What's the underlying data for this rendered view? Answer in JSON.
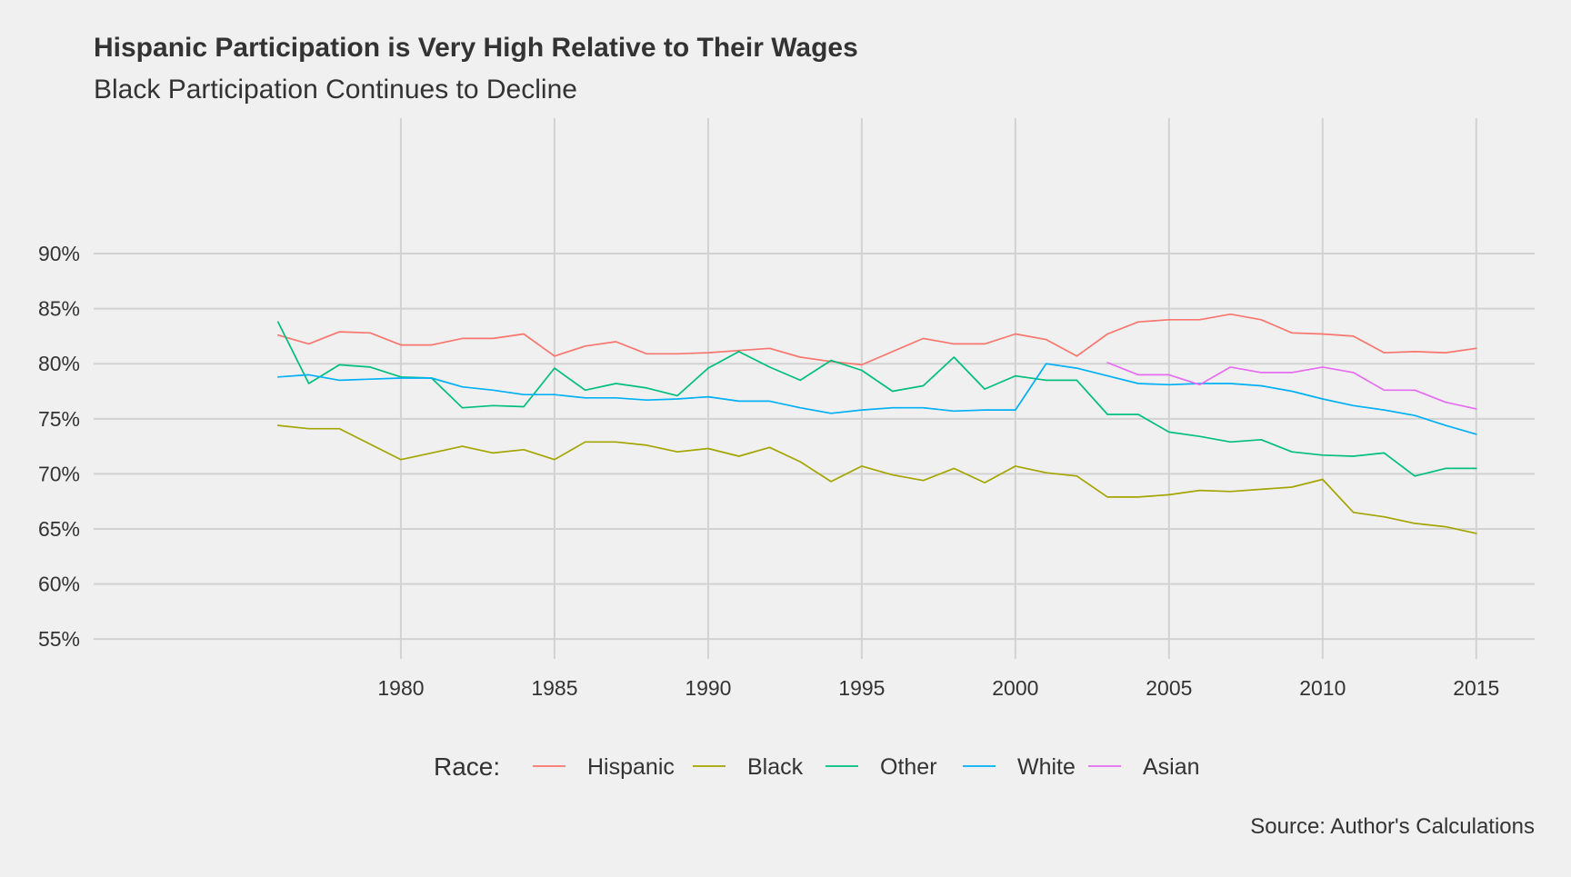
{
  "chart_data": {
    "type": "line",
    "title": "Hispanic Participation is Very High Relative to Their Wages",
    "subtitle": "Black Participation Continues to Decline",
    "caption": "Source: Author's Calculations",
    "xlabel": "",
    "ylabel": "",
    "xlim": [
      1970,
      2016.9
    ],
    "ylim": [
      53.2,
      102.3
    ],
    "x_ticks": [
      1980,
      1985,
      1990,
      1995,
      2000,
      2005,
      2010,
      2015
    ],
    "x_tick_labels": [
      "1980",
      "1985",
      "1990",
      "1995",
      "2000",
      "2005",
      "2010",
      "2015"
    ],
    "y_ticks": [
      55,
      60,
      65,
      70,
      75,
      80,
      85,
      90
    ],
    "y_tick_labels": [
      "55%",
      "60%",
      "65%",
      "70%",
      "75%",
      "80%",
      "85%",
      "90%"
    ],
    "grid": true,
    "legend": {
      "title": "Race:",
      "placement": "bottom"
    },
    "series": [
      {
        "name": "Hispanic",
        "color": "#F8766D",
        "x": [
          1976,
          1977,
          1978,
          1979,
          1980,
          1981,
          1982,
          1983,
          1984,
          1985,
          1986,
          1987,
          1988,
          1989,
          1990,
          1991,
          1992,
          1993,
          1994,
          1995,
          1996,
          1997,
          1998,
          1999,
          2000,
          2001,
          2002,
          2003,
          2004,
          2005,
          2006,
          2007,
          2008,
          2009,
          2010,
          2011,
          2012,
          2013,
          2014,
          2015
        ],
        "values": [
          82.6,
          81.8,
          82.9,
          82.8,
          81.7,
          81.7,
          82.3,
          82.3,
          82.7,
          80.7,
          81.6,
          82.0,
          80.9,
          80.9,
          81.0,
          81.2,
          81.4,
          80.6,
          80.2,
          79.9,
          81.1,
          82.3,
          81.8,
          81.8,
          82.7,
          82.2,
          80.7,
          82.7,
          83.8,
          84.0,
          84.0,
          84.5,
          84.0,
          82.8,
          82.7,
          82.5,
          81.0,
          81.1,
          81.0,
          81.4
        ]
      },
      {
        "name": "Black",
        "color": "#A3A500",
        "x": [
          1976,
          1977,
          1978,
          1979,
          1980,
          1981,
          1982,
          1983,
          1984,
          1985,
          1986,
          1987,
          1988,
          1989,
          1990,
          1991,
          1992,
          1993,
          1994,
          1995,
          1996,
          1997,
          1998,
          1999,
          2000,
          2001,
          2002,
          2003,
          2004,
          2005,
          2006,
          2007,
          2008,
          2009,
          2010,
          2011,
          2012,
          2013,
          2014,
          2015
        ],
        "values": [
          74.4,
          74.1,
          74.1,
          72.7,
          71.3,
          71.9,
          72.5,
          71.9,
          72.2,
          71.3,
          72.9,
          72.9,
          72.6,
          72.0,
          72.3,
          71.6,
          72.4,
          71.1,
          69.3,
          70.7,
          69.9,
          69.4,
          70.5,
          69.2,
          70.7,
          70.1,
          69.8,
          67.9,
          67.9,
          68.1,
          68.5,
          68.4,
          68.6,
          68.8,
          69.5,
          66.5,
          66.1,
          65.5,
          65.2,
          64.6
        ]
      },
      {
        "name": "Other",
        "color": "#00BF7D",
        "x": [
          1976,
          1977,
          1978,
          1979,
          1980,
          1981,
          1982,
          1983,
          1984,
          1985,
          1986,
          1987,
          1988,
          1989,
          1990,
          1991,
          1992,
          1993,
          1994,
          1995,
          1996,
          1997,
          1998,
          1999,
          2000,
          2001,
          2002,
          2003,
          2004,
          2005,
          2006,
          2007,
          2008,
          2009,
          2010,
          2011,
          2012,
          2013,
          2014,
          2015
        ],
        "values": [
          83.8,
          78.2,
          79.9,
          79.7,
          78.8,
          78.7,
          76.0,
          76.2,
          76.1,
          79.6,
          77.6,
          78.2,
          77.8,
          77.1,
          79.6,
          81.1,
          79.7,
          78.5,
          80.3,
          79.4,
          77.5,
          78.0,
          80.6,
          77.7,
          78.9,
          78.5,
          78.5,
          75.4,
          75.4,
          73.8,
          73.4,
          72.9,
          73.1,
          72.0,
          71.7,
          71.6,
          71.9,
          69.8,
          70.5,
          70.5
        ]
      },
      {
        "name": "White",
        "color": "#00B0F6",
        "x": [
          1976,
          1977,
          1978,
          1979,
          1980,
          1981,
          1982,
          1983,
          1984,
          1985,
          1986,
          1987,
          1988,
          1989,
          1990,
          1991,
          1992,
          1993,
          1994,
          1995,
          1996,
          1997,
          1998,
          1999,
          2000,
          2001,
          2002,
          2003,
          2004,
          2005,
          2006,
          2007,
          2008,
          2009,
          2010,
          2011,
          2012,
          2013,
          2014,
          2015
        ],
        "values": [
          78.8,
          79.0,
          78.5,
          78.6,
          78.7,
          78.7,
          77.9,
          77.6,
          77.2,
          77.2,
          76.9,
          76.9,
          76.7,
          76.8,
          77.0,
          76.6,
          76.6,
          76.0,
          75.5,
          75.8,
          76.0,
          76.0,
          75.7,
          75.8,
          75.8,
          80.0,
          79.6,
          78.9,
          78.2,
          78.1,
          78.2,
          78.2,
          78.0,
          77.5,
          76.8,
          76.2,
          75.8,
          75.3,
          74.4,
          73.6
        ]
      },
      {
        "name": "Asian",
        "color": "#E76BF3",
        "x": [
          2003,
          2004,
          2005,
          2006,
          2007,
          2008,
          2009,
          2010,
          2011,
          2012,
          2013,
          2014,
          2015
        ],
        "values": [
          80.1,
          79.0,
          79.0,
          78.1,
          79.7,
          79.2,
          79.2,
          79.7,
          79.2,
          77.6,
          77.6,
          76.5,
          75.9
        ]
      }
    ]
  }
}
